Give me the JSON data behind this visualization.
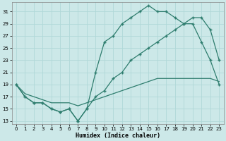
{
  "xlabel": "Humidex (Indice chaleur)",
  "xlim": [
    -0.5,
    23.5
  ],
  "ylim": [
    12.5,
    32.5
  ],
  "yticks": [
    13,
    15,
    17,
    19,
    21,
    23,
    25,
    27,
    29,
    31
  ],
  "xticks": [
    0,
    1,
    2,
    3,
    4,
    5,
    6,
    7,
    8,
    9,
    10,
    11,
    12,
    13,
    14,
    15,
    16,
    17,
    18,
    19,
    20,
    21,
    22,
    23
  ],
  "line_color": "#2e7d6e",
  "bg_color": "#cce8e8",
  "grid_color": "#b0d8d8",
  "line1_x": [
    0,
    1,
    2,
    3,
    4,
    5,
    6,
    7,
    8,
    9,
    10,
    11,
    12,
    13,
    14,
    15,
    16,
    17,
    18,
    19,
    20,
    21,
    22,
    23
  ],
  "line1_y": [
    19,
    17,
    16,
    16,
    15,
    14.5,
    15,
    13,
    15,
    21,
    26,
    27,
    29,
    30,
    31,
    32,
    31,
    31,
    30,
    29,
    29,
    26,
    23,
    19
  ],
  "line2_x": [
    0,
    1,
    2,
    3,
    4,
    5,
    6,
    7,
    8,
    9,
    10,
    11,
    12,
    13,
    14,
    15,
    16,
    17,
    18,
    19,
    20,
    21,
    22,
    23
  ],
  "line2_y": [
    19,
    17.5,
    17,
    16.5,
    16,
    16,
    16,
    15.5,
    16,
    16.5,
    17,
    17.5,
    18,
    18.5,
    19,
    19.5,
    20,
    20,
    20,
    20,
    20,
    20,
    20,
    19.5
  ],
  "line3_x": [
    0,
    1,
    2,
    3,
    4,
    5,
    6,
    7,
    8,
    9,
    10,
    11,
    12,
    13,
    14,
    15,
    16,
    17,
    18,
    19,
    20,
    21,
    22,
    23
  ],
  "line3_y": [
    19,
    17,
    16,
    16,
    15,
    14.5,
    15,
    13,
    15,
    17,
    18,
    20,
    21,
    23,
    24,
    25,
    26,
    27,
    28,
    29,
    30,
    30,
    28,
    23
  ]
}
